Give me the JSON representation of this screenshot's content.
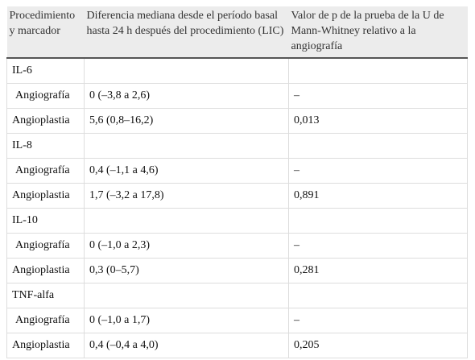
{
  "table": {
    "header": [
      "Procedimiento y marcador",
      "Diferencia mediana desde el período basal hasta 24 h después del procedimiento (LIC)",
      "Valor de p de la prueba de la U de Mann-Whitney relativo a la angiografía"
    ],
    "rows": [
      [
        "IL-6"
      ],
      [
        "Angiografía",
        "0 (–3,8 a 2,6)",
        "–"
      ],
      [
        "Angioplastia",
        "5,6 (0,8–16,2)",
        "0,013"
      ],
      [
        "IL-8"
      ],
      [
        "Angiografía",
        "0,4 (–1,1 a 4,6)",
        "–"
      ],
      [
        "Angioplastia",
        "1,7 (–3,2 a 17,8)",
        "0,891"
      ],
      [
        "IL-10"
      ],
      [
        "Angiografía",
        "0 (–1,0 a 2,3)",
        "–"
      ],
      [
        "Angioplastia",
        "0,3 (0–5,7)",
        "0,281"
      ],
      [
        "TNF-alfa"
      ],
      [
        "Angiografía",
        "0 (–1,0 a 1,7)",
        "–"
      ],
      [
        "Angioplastia",
        "0,4 (–0,4 a 4,0)",
        "0,205"
      ]
    ]
  }
}
